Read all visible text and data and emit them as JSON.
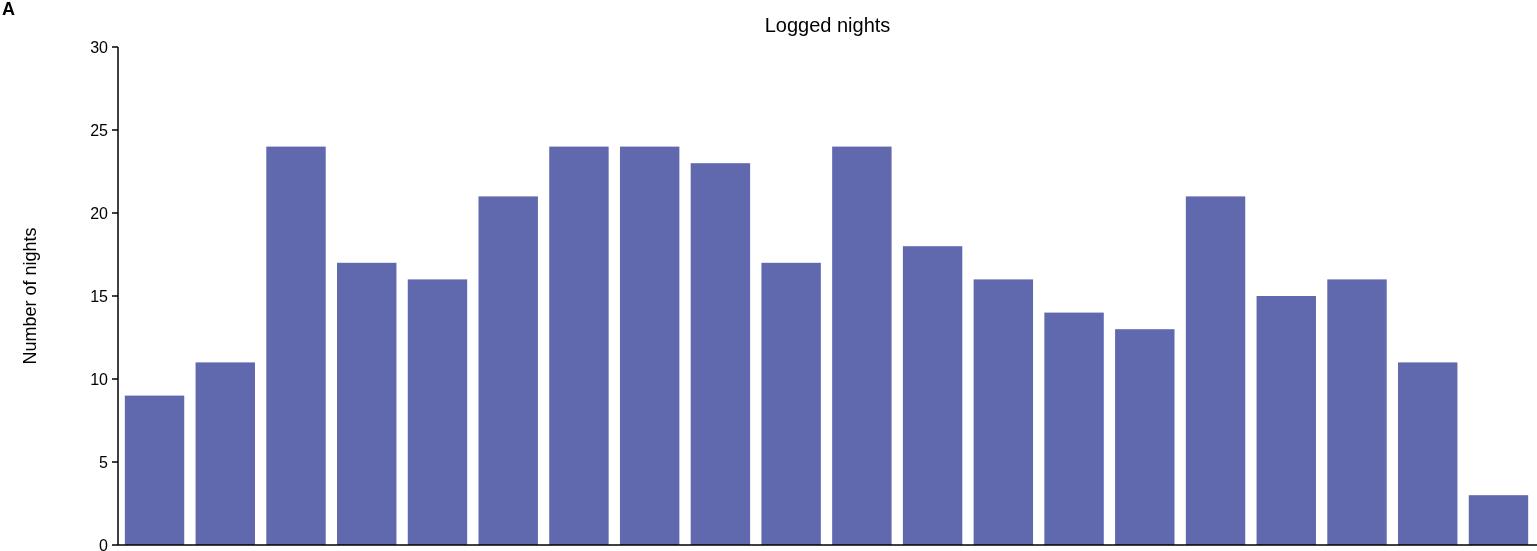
{
  "chart_data": {
    "type": "bar",
    "title": "Logged nights",
    "ylabel": "Number of nights",
    "annotations": [
      "A"
    ],
    "categories": [
      null,
      null,
      null,
      null,
      null,
      null,
      null,
      null,
      null,
      null,
      null,
      null,
      null,
      null,
      null,
      null,
      null,
      null,
      null,
      null
    ],
    "values": [
      9,
      11,
      24,
      17,
      16,
      21,
      24,
      24,
      23,
      17,
      24,
      18,
      16,
      14,
      13,
      21,
      15,
      16,
      11,
      3
    ],
    "color": "#6068ae",
    "ylim": [
      0,
      30
    ],
    "yticks": [
      0,
      5,
      10,
      15,
      20,
      25,
      30
    ],
    "grid": false
  }
}
